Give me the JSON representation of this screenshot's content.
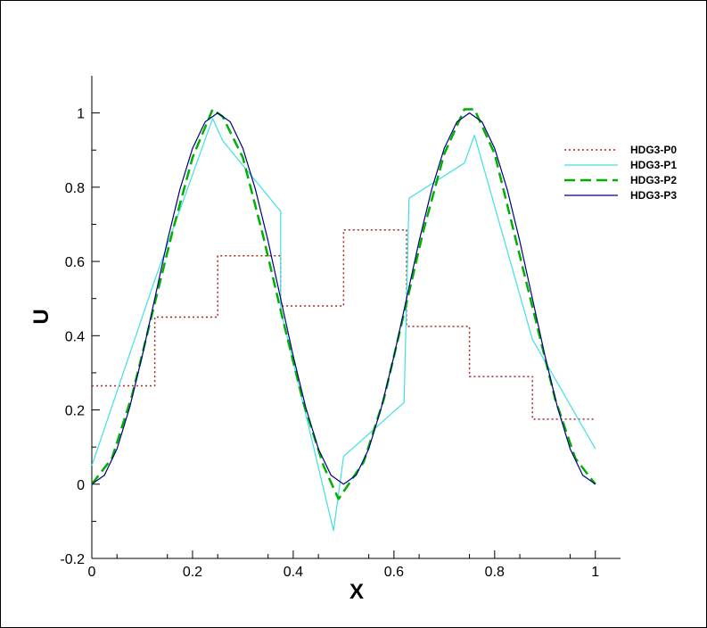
{
  "chart_data": {
    "type": "line",
    "xlabel": "X",
    "ylabel": "U",
    "xlim": [
      0,
      1.05
    ],
    "ylim": [
      -0.2,
      1.1
    ],
    "x_ticks": [
      0,
      0.2,
      0.4,
      0.6,
      0.8,
      1
    ],
    "x_tick_labels": [
      "0",
      "0.2",
      "0.4",
      "0.6",
      "0.8",
      "1"
    ],
    "y_ticks": [
      -0.2,
      0,
      0.2,
      0.4,
      0.6,
      0.8,
      1
    ],
    "y_tick_labels": [
      "-0.2",
      "0",
      "0.2",
      "0.4",
      "0.6",
      "0.8",
      "1"
    ],
    "grid": false,
    "legend_position": "right",
    "series": [
      {
        "name": "HDG3-P0",
        "color": "#a52a2a",
        "style": "dotted",
        "x": [
          0,
          0.125,
          0.125,
          0.25,
          0.25,
          0.375,
          0.375,
          0.5,
          0.5,
          0.625,
          0.625,
          0.75,
          0.75,
          0.875,
          0.875,
          1.0
        ],
        "y": [
          0.265,
          0.265,
          0.45,
          0.45,
          0.615,
          0.615,
          0.48,
          0.48,
          0.685,
          0.685,
          0.425,
          0.425,
          0.29,
          0.29,
          0.175,
          0.175
        ]
      },
      {
        "name": "HDG3-P1",
        "color": "#40e0e0",
        "style": "solid",
        "x": [
          0,
          0.125,
          0.24,
          0.26,
          0.375,
          0.375,
          0.48,
          0.5,
          0.62,
          0.63,
          0.74,
          0.76,
          0.875,
          1.0
        ],
        "y": [
          0.05,
          0.55,
          0.985,
          0.925,
          0.735,
          0.47,
          -0.125,
          0.075,
          0.22,
          0.77,
          0.865,
          0.94,
          0.39,
          0.095
        ]
      },
      {
        "name": "HDG3-P2",
        "color": "#00b000",
        "style": "dashed",
        "x": [
          0,
          0.04,
          0.08,
          0.12,
          0.16,
          0.2,
          0.24,
          0.26,
          0.3,
          0.34,
          0.38,
          0.42,
          0.46,
          0.49,
          0.51,
          0.54,
          0.58,
          0.62,
          0.66,
          0.7,
          0.74,
          0.76,
          0.8,
          0.84,
          0.88,
          0.92,
          0.96,
          1.0
        ],
        "y": [
          0.0,
          0.07,
          0.24,
          0.46,
          0.68,
          0.88,
          1.01,
          0.99,
          0.88,
          0.67,
          0.44,
          0.22,
          0.05,
          -0.04,
          0.0,
          0.06,
          0.23,
          0.46,
          0.69,
          0.89,
          1.01,
          1.01,
          0.89,
          0.67,
          0.45,
          0.23,
          0.07,
          0.0
        ]
      },
      {
        "name": "HDG3-P3",
        "color": "#00007f",
        "style": "solid",
        "x": [
          0,
          0.025,
          0.05,
          0.075,
          0.1,
          0.125,
          0.15,
          0.175,
          0.2,
          0.225,
          0.25,
          0.275,
          0.3,
          0.325,
          0.35,
          0.375,
          0.4,
          0.425,
          0.45,
          0.475,
          0.5,
          0.525,
          0.55,
          0.575,
          0.6,
          0.625,
          0.65,
          0.675,
          0.7,
          0.725,
          0.75,
          0.775,
          0.8,
          0.825,
          0.85,
          0.875,
          0.9,
          0.925,
          0.95,
          0.975,
          1.0
        ],
        "y": [
          0.0,
          0.024,
          0.095,
          0.206,
          0.345,
          0.5,
          0.655,
          0.794,
          0.905,
          0.976,
          1.0,
          0.976,
          0.905,
          0.794,
          0.655,
          0.5,
          0.345,
          0.206,
          0.095,
          0.024,
          0.0,
          0.024,
          0.095,
          0.206,
          0.345,
          0.5,
          0.655,
          0.794,
          0.905,
          0.976,
          1.0,
          0.976,
          0.905,
          0.794,
          0.655,
          0.5,
          0.345,
          0.206,
          0.095,
          0.024,
          0.0
        ]
      }
    ]
  }
}
